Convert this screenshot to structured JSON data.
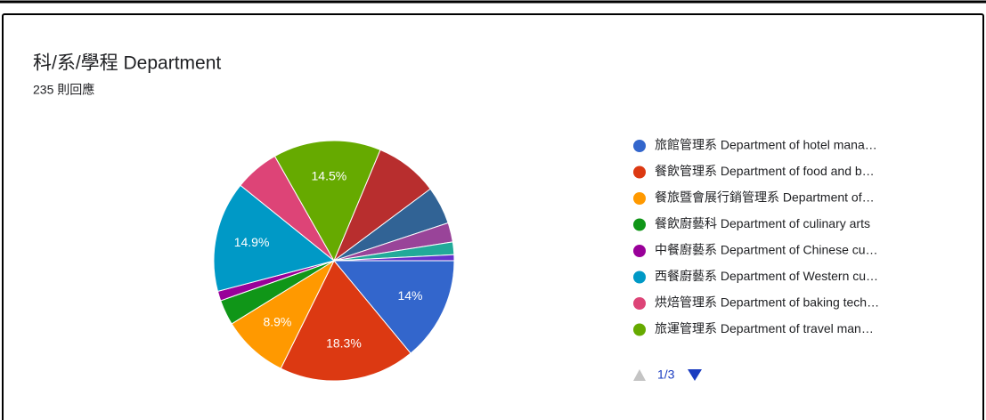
{
  "chart_data": {
    "type": "pie",
    "title": "科/系/學程 Department",
    "subtitle": "235 則回應",
    "categories": [
      "旅館管理系 Department of hotel mana…",
      "餐飲管理系 Department of food and b…",
      "餐旅暨會展行銷管理系 Department of…",
      "餐飲廚藝科 Department of culinary arts",
      "中餐廚藝系 Department of Chinese cu…",
      "西餐廚藝系 Department of Western cu…",
      "烘焙管理系 Department of baking tech…",
      "旅運管理系 Department of travel man…",
      null,
      null,
      null,
      null,
      null
    ],
    "values": [
      14,
      18.3,
      8.9,
      3.4,
      1.3,
      14.9,
      6,
      14.5,
      8.5,
      5.1,
      2.6,
      1.7,
      0.8
    ],
    "value_labels": [
      "14%",
      "18.3%",
      "8.9%",
      null,
      null,
      "14.9%",
      null,
      "14.5%",
      null,
      null,
      null,
      null,
      null
    ],
    "colors": [
      "#3366cc",
      "#dc3912",
      "#ff9900",
      "#109618",
      "#990099",
      "#0099c6",
      "#dd4477",
      "#66aa00",
      "#b82e2e",
      "#316395",
      "#994499",
      "#22aa99",
      "#6633cc"
    ],
    "pagination": "1/3"
  }
}
